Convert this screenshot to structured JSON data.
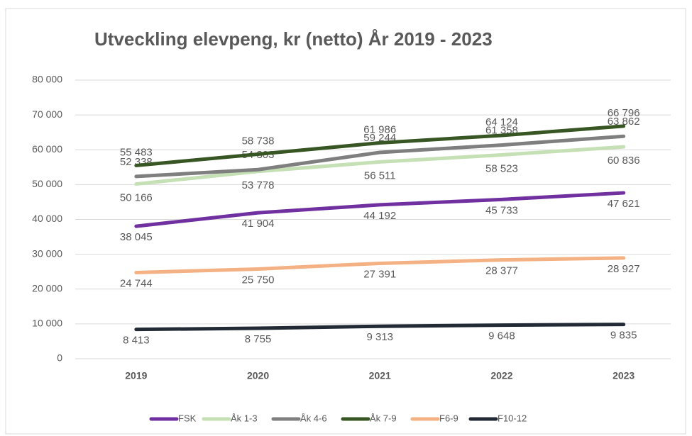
{
  "chart_data": {
    "type": "line",
    "title": "Utveckling elevpeng, kr (netto)  År 2019 - 2023",
    "categories": [
      "2019",
      "2020",
      "2021",
      "2022",
      "2023"
    ],
    "ylim": [
      0,
      80000
    ],
    "yticks": [
      0,
      {
        "value": 10000,
        "label": "10 000"
      },
      {
        "value": 20000,
        "label": "20 000"
      },
      {
        "value": 30000,
        "label": "30 000"
      },
      {
        "value": 40000,
        "label": "40 000"
      },
      {
        "value": 50000,
        "label": "50 000"
      },
      {
        "value": 60000,
        "label": "60 000"
      },
      {
        "value": 70000,
        "label": "70 000"
      },
      {
        "value": 80000,
        "label": "80 000"
      }
    ],
    "grid": true,
    "legend": "bottom",
    "series": [
      {
        "name": "FSK",
        "color": "#7030a0",
        "values": [
          38045,
          41904,
          44192,
          45733,
          47621
        ],
        "value_labels": [
          "38 045",
          "41 904",
          "44 192",
          "45 733",
          "47 621"
        ]
      },
      {
        "name": "Åk 1-3",
        "color": "#c5e0b4",
        "values": [
          50166,
          53778,
          56511,
          58523,
          60836
        ],
        "value_labels": [
          "50 166",
          "53 778",
          "56 511",
          "58 523",
          "60 836"
        ]
      },
      {
        "name": "Åk 4-6",
        "color": "#7f7f7f",
        "values": [
          52338,
          54303,
          59244,
          61358,
          63862
        ],
        "value_labels": [
          "52 338",
          "54 303",
          "59 244",
          "61 358",
          "63 862"
        ]
      },
      {
        "name": "Åk 7-9",
        "color": "#375623",
        "values": [
          55483,
          58738,
          61986,
          64124,
          66796
        ],
        "value_labels": [
          "55 483",
          "58 738",
          "61 986",
          "64 124",
          "66 796"
        ]
      },
      {
        "name": "F6-9",
        "color": "#f4b183",
        "values": [
          24744,
          25750,
          27391,
          28377,
          28927
        ],
        "value_labels": [
          "24 744",
          "25 750",
          "27 391",
          "28 377",
          "28 927"
        ]
      },
      {
        "name": "F10-12",
        "color": "#222a35",
        "values": [
          8413,
          8755,
          9313,
          9648,
          9835
        ],
        "value_labels": [
          "8 413",
          "8 755",
          "9 313",
          "9 648",
          "9 835"
        ]
      }
    ]
  }
}
